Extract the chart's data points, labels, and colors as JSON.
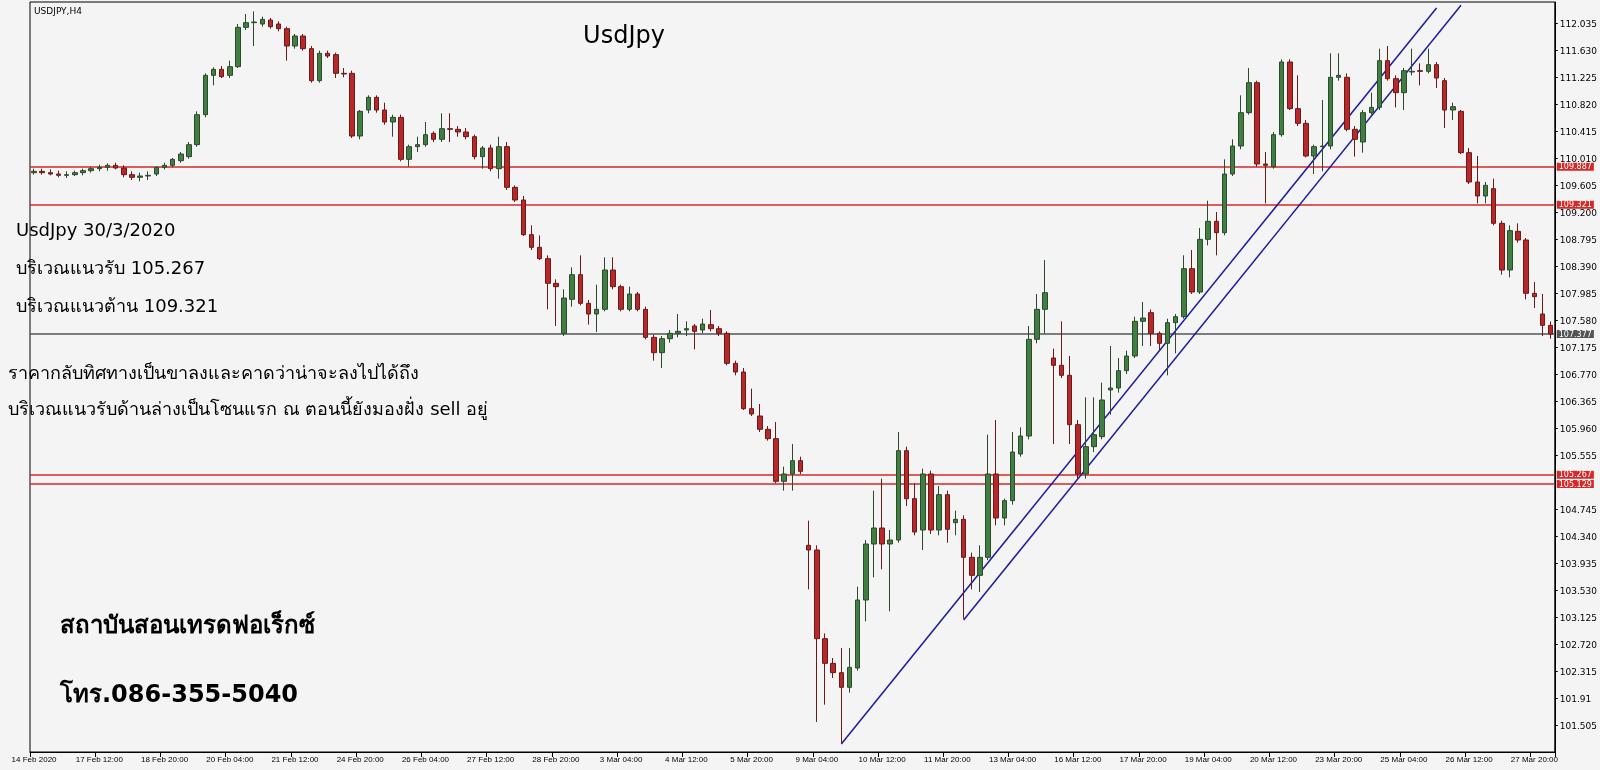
{
  "chart_data": {
    "type": "candlestick",
    "title": "UsdJpy",
    "subtitle": "USDJPY,H4",
    "categories": [
      "14 Feb 2020",
      null,
      null,
      null,
      null,
      null,
      null,
      null,
      "17 Feb 12:00",
      null,
      null,
      null,
      null,
      null,
      null,
      null,
      "18 Feb 20:00",
      null,
      null,
      null,
      null,
      null,
      null,
      null,
      "20 Feb 04:00",
      null,
      null,
      null,
      null,
      null,
      null,
      null,
      "21 Feb 12:00",
      null,
      null,
      null,
      null,
      null,
      null,
      null,
      "24 Feb 20:00",
      null,
      null,
      null,
      null,
      null,
      null,
      null,
      "26 Feb 04:00",
      null,
      null,
      null,
      null,
      null,
      null,
      null,
      "27 Feb 12:00",
      null,
      null,
      null,
      null,
      null,
      null,
      null,
      "28 Feb 20:00",
      null,
      null,
      null,
      null,
      null,
      null,
      null,
      "3 Mar 04:00",
      null,
      null,
      null,
      null,
      null,
      null,
      null,
      "4 Mar 12:00",
      null,
      null,
      null,
      null,
      null,
      null,
      null,
      "5 Mar 20:00",
      null,
      null,
      null,
      null,
      null,
      null,
      null,
      "9 Mar 04:00",
      null,
      null,
      null,
      null,
      null,
      null,
      null,
      "10 Mar 12:00",
      null,
      null,
      null,
      null,
      null,
      null,
      null,
      "11 Mar 20:00",
      null,
      null,
      null,
      null,
      null,
      null,
      null,
      "13 Mar 04:00",
      null,
      null,
      null,
      null,
      null,
      null,
      null,
      "16 Mar 12:00",
      null,
      null,
      null,
      null,
      null,
      null,
      null,
      "17 Mar 20:00",
      null,
      null,
      null,
      null,
      null,
      null,
      null,
      "19 Mar 04:00",
      null,
      null,
      null,
      null,
      null,
      null,
      null,
      "20 Mar 12:00",
      null,
      null,
      null,
      null,
      null,
      null,
      null,
      "23 Mar 20:00",
      null,
      null,
      null,
      null,
      null,
      null,
      null,
      "25 Mar 04:00",
      null,
      null,
      null,
      null,
      null,
      null,
      null,
      "26 Mar 12:00",
      null,
      null,
      null,
      null,
      null,
      null,
      null,
      "27 Mar 20:00",
      null,
      null
    ],
    "series": [
      {
        "type": "candlestick",
        "ohlc": [
          [
            109.8,
            109.86,
            109.77,
            109.82
          ],
          [
            109.82,
            109.86,
            109.77,
            109.8
          ],
          [
            109.8,
            109.85,
            109.76,
            109.78
          ],
          [
            109.78,
            109.83,
            109.73,
            109.76
          ],
          [
            109.76,
            109.82,
            109.72,
            109.77
          ],
          [
            109.77,
            109.83,
            109.75,
            109.8
          ],
          [
            109.8,
            109.86,
            109.76,
            109.83
          ],
          [
            109.83,
            109.89,
            109.8,
            109.86
          ],
          [
            109.86,
            109.92,
            109.82,
            109.88
          ],
          [
            109.88,
            109.94,
            109.83,
            109.91
          ],
          [
            109.91,
            109.95,
            109.85,
            109.87
          ],
          [
            109.87,
            109.91,
            109.73,
            109.77
          ],
          [
            109.77,
            109.82,
            109.69,
            109.73
          ],
          [
            109.73,
            109.8,
            109.67,
            109.75
          ],
          [
            109.75,
            109.82,
            109.69,
            109.76
          ],
          [
            109.78,
            109.89,
            109.75,
            109.88
          ],
          [
            109.88,
            109.95,
            109.85,
            109.91
          ],
          [
            109.91,
            110.02,
            109.88,
            110.0
          ],
          [
            109.98,
            110.11,
            109.95,
            110.08
          ],
          [
            110.04,
            110.26,
            110.01,
            110.22
          ],
          [
            110.22,
            110.72,
            110.19,
            110.67
          ],
          [
            110.67,
            111.29,
            110.63,
            111.26
          ],
          [
            111.26,
            111.38,
            111.11,
            111.35
          ],
          [
            111.35,
            111.4,
            111.22,
            111.24
          ],
          [
            111.26,
            111.48,
            111.22,
            111.39
          ],
          [
            111.39,
            112.03,
            111.37,
            111.98
          ],
          [
            111.98,
            112.18,
            111.94,
            112.05
          ],
          [
            112.05,
            112.22,
            111.7,
            112.06
          ],
          [
            112.03,
            112.14,
            111.99,
            112.1
          ],
          [
            112.09,
            112.12,
            111.96,
            111.99
          ],
          [
            112.03,
            112.07,
            111.92,
            111.96
          ],
          [
            111.96,
            111.99,
            111.48,
            111.7
          ],
          [
            111.7,
            111.88,
            111.66,
            111.85
          ],
          [
            111.85,
            111.88,
            111.63,
            111.66
          ],
          [
            111.66,
            111.7,
            111.15,
            111.18
          ],
          [
            111.18,
            111.63,
            111.15,
            111.59
          ],
          [
            111.59,
            111.63,
            111.52,
            111.55
          ],
          [
            111.57,
            111.6,
            111.22,
            111.29
          ],
          [
            111.29,
            111.37,
            111.23,
            111.28
          ],
          [
            111.29,
            111.33,
            110.32,
            110.35
          ],
          [
            110.35,
            110.74,
            110.3,
            110.72
          ],
          [
            110.74,
            110.96,
            110.69,
            110.93
          ],
          [
            110.93,
            110.96,
            110.7,
            110.74
          ],
          [
            110.74,
            110.85,
            110.52,
            110.56
          ],
          [
            110.56,
            110.67,
            110.34,
            110.63
          ],
          [
            110.63,
            110.67,
            109.97,
            110.0
          ],
          [
            110.0,
            110.22,
            109.89,
            110.19
          ],
          [
            110.19,
            110.34,
            110.11,
            110.22
          ],
          [
            110.22,
            110.56,
            110.19,
            110.37
          ],
          [
            110.39,
            110.42,
            110.26,
            110.3
          ],
          [
            110.3,
            110.69,
            110.26,
            110.46
          ],
          [
            110.46,
            110.69,
            110.26,
            110.45
          ],
          [
            110.45,
            110.5,
            110.34,
            110.41
          ],
          [
            110.41,
            110.47,
            110.3,
            110.34
          ],
          [
            110.34,
            110.37,
            110.0,
            110.04
          ],
          [
            110.04,
            110.2,
            109.86,
            110.17
          ],
          [
            110.17,
            110.22,
            109.82,
            109.86
          ],
          [
            109.86,
            110.34,
            109.71,
            110.19
          ],
          [
            110.19,
            110.26,
            109.54,
            109.58
          ],
          [
            109.58,
            109.61,
            109.36,
            109.39
          ],
          [
            109.39,
            109.45,
            108.85,
            108.87
          ],
          [
            108.87,
            109.01,
            108.64,
            108.68
          ],
          [
            108.68,
            108.86,
            108.49,
            108.51
          ],
          [
            108.51,
            108.56,
            107.75,
            108.14
          ],
          [
            108.14,
            108.2,
            107.5,
            108.09
          ],
          [
            107.39,
            108.05,
            107.35,
            107.92
          ],
          [
            107.9,
            108.38,
            107.79,
            108.27
          ],
          [
            108.27,
            108.56,
            107.81,
            107.84
          ],
          [
            107.84,
            107.89,
            107.52,
            107.68
          ],
          [
            107.68,
            108.12,
            107.41,
            107.75
          ],
          [
            107.75,
            108.53,
            107.72,
            108.34
          ],
          [
            108.34,
            108.53,
            108.05,
            108.09
          ],
          [
            108.09,
            108.12,
            107.72,
            107.75
          ],
          [
            107.75,
            108.09,
            107.72,
            107.98
          ],
          [
            107.98,
            108.01,
            107.72,
            107.75
          ],
          [
            107.75,
            107.79,
            107.3,
            107.33
          ],
          [
            107.33,
            107.37,
            106.98,
            107.1
          ],
          [
            107.1,
            107.35,
            106.87,
            107.31
          ],
          [
            107.31,
            107.44,
            107.25,
            107.39
          ],
          [
            107.39,
            107.68,
            107.33,
            107.42
          ],
          [
            107.44,
            107.57,
            107.35,
            107.46
          ],
          [
            107.5,
            107.53,
            107.15,
            107.42
          ],
          [
            107.44,
            107.61,
            107.39,
            107.53
          ],
          [
            107.52,
            107.74,
            107.42,
            107.46
          ],
          [
            107.46,
            107.5,
            107.35,
            107.39
          ],
          [
            107.39,
            107.42,
            106.91,
            106.94
          ],
          [
            106.94,
            106.98,
            106.76,
            106.81
          ],
          [
            106.81,
            106.87,
            106.24,
            106.26
          ],
          [
            106.26,
            106.56,
            106.15,
            106.18
          ],
          [
            106.15,
            106.33,
            105.91,
            105.95
          ],
          [
            105.95,
            106.0,
            105.78,
            105.81
          ],
          [
            105.81,
            106.06,
            105.14,
            105.17
          ],
          [
            105.17,
            105.39,
            105.03,
            105.28
          ],
          [
            105.28,
            105.73,
            105.03,
            105.48
          ],
          [
            105.48,
            105.54,
            105.28,
            105.32
          ],
          [
            104.21,
            104.58,
            103.55,
            104.14
          ],
          [
            104.14,
            104.21,
            101.56,
            102.81
          ],
          [
            102.81,
            102.89,
            101.82,
            102.44
          ],
          [
            102.44,
            102.52,
            102.22,
            102.3
          ],
          [
            102.3,
            102.67,
            101.23,
            102.08
          ],
          [
            102.08,
            102.67,
            102.0,
            102.38
          ],
          [
            102.37,
            103.59,
            102.33,
            103.39
          ],
          [
            103.39,
            104.29,
            103.07,
            104.23
          ],
          [
            104.23,
            105.03,
            103.73,
            104.47
          ],
          [
            104.47,
            105.21,
            103.85,
            104.23
          ],
          [
            104.23,
            104.44,
            103.22,
            104.29
          ],
          [
            104.29,
            105.91,
            104.25,
            105.63
          ],
          [
            105.63,
            105.69,
            104.8,
            104.91
          ],
          [
            104.91,
            105.14,
            104.36,
            104.41
          ],
          [
            104.44,
            105.36,
            104.14,
            105.28
          ],
          [
            105.28,
            105.33,
            104.38,
            104.44
          ],
          [
            104.44,
            105.1,
            104.36,
            104.97
          ],
          [
            104.97,
            105.03,
            104.25,
            104.45
          ],
          [
            104.55,
            104.73,
            104.36,
            104.6
          ],
          [
            104.6,
            104.66,
            103.11,
            104.03
          ],
          [
            104.03,
            104.1,
            103.55,
            103.76
          ],
          [
            103.76,
            104.21,
            103.51,
            104.03
          ],
          [
            104.03,
            105.87,
            103.99,
            105.28
          ],
          [
            105.28,
            106.09,
            104.51,
            104.62
          ],
          [
            104.62,
            104.91,
            104.51,
            104.88
          ],
          [
            104.88,
            105.91,
            104.82,
            105.61
          ],
          [
            105.58,
            105.98,
            105.54,
            105.85
          ],
          [
            105.85,
            107.5,
            105.8,
            107.3
          ],
          [
            107.3,
            107.98,
            107.24,
            107.75
          ],
          [
            107.75,
            108.49,
            107.39,
            108.0
          ],
          [
            107.02,
            107.16,
            105.73,
            106.91
          ],
          [
            106.91,
            107.57,
            106.72,
            106.76
          ],
          [
            106.76,
            107.05,
            105.73,
            106.02
          ],
          [
            106.02,
            106.09,
            105.21,
            105.28
          ],
          [
            105.28,
            106.43,
            105.21,
            105.69
          ],
          [
            105.69,
            106.43,
            105.61,
            105.87
          ],
          [
            105.84,
            106.65,
            105.8,
            106.39
          ],
          [
            106.54,
            107.2,
            106.17,
            106.57
          ],
          [
            106.57,
            107.02,
            106.5,
            106.83
          ],
          [
            106.83,
            107.13,
            106.78,
            107.05
          ],
          [
            107.05,
            107.64,
            107.02,
            107.57
          ],
          [
            107.57,
            107.86,
            107.2,
            107.62
          ],
          [
            107.7,
            107.75,
            107.2,
            107.39
          ],
          [
            107.39,
            107.42,
            107.13,
            107.24
          ],
          [
            107.24,
            107.61,
            106.76,
            107.55
          ],
          [
            107.55,
            107.68,
            107.09,
            107.64
          ],
          [
            107.64,
            108.56,
            107.61,
            108.36
          ],
          [
            108.36,
            108.64,
            107.98,
            108.01
          ],
          [
            108.01,
            108.97,
            107.98,
            108.8
          ],
          [
            108.8,
            109.38,
            108.71,
            109.07
          ],
          [
            109.07,
            109.21,
            108.56,
            108.9
          ],
          [
            108.9,
            110.0,
            108.86,
            109.78
          ],
          [
            109.78,
            110.3,
            109.75,
            110.2
          ],
          [
            110.2,
            110.96,
            110.15,
            110.7
          ],
          [
            110.7,
            111.37,
            110.67,
            111.15
          ],
          [
            111.15,
            111.18,
            109.89,
            109.93
          ],
          [
            109.93,
            110.11,
            109.34,
            109.91
          ],
          [
            109.89,
            110.41,
            109.86,
            110.37
          ],
          [
            110.37,
            111.5,
            110.34,
            111.46
          ],
          [
            111.46,
            111.5,
            110.74,
            110.76
          ],
          [
            110.76,
            111.26,
            110.5,
            110.54
          ],
          [
            110.54,
            110.59,
            110.03,
            110.05
          ],
          [
            110.05,
            110.22,
            109.78,
            110.19
          ],
          [
            110.19,
            110.89,
            109.82,
            110.2
          ],
          [
            110.2,
            111.59,
            110.15,
            111.23
          ],
          [
            111.23,
            111.59,
            111.18,
            111.26
          ],
          [
            111.23,
            111.29,
            110.42,
            110.45
          ],
          [
            110.45,
            110.5,
            110.04,
            110.3
          ],
          [
            110.26,
            110.74,
            110.1,
            110.7
          ],
          [
            110.7,
            111.0,
            110.67,
            110.78
          ],
          [
            110.78,
            111.66,
            110.74,
            111.48
          ],
          [
            111.48,
            111.7,
            111.18,
            111.21
          ],
          [
            111.21,
            111.26,
            110.78,
            111.0
          ],
          [
            111.0,
            111.37,
            110.74,
            111.33
          ],
          [
            111.31,
            111.66,
            111.26,
            111.32
          ],
          [
            111.33,
            111.44,
            111.11,
            111.32
          ],
          [
            111.32,
            111.66,
            111.29,
            111.42
          ],
          [
            111.42,
            111.46,
            111.07,
            111.22
          ],
          [
            111.18,
            111.22,
            110.47,
            110.74
          ],
          [
            110.74,
            110.85,
            110.59,
            110.79
          ],
          [
            110.72,
            110.74,
            110.08,
            110.1
          ],
          [
            110.1,
            110.17,
            109.63,
            109.66
          ],
          [
            109.66,
            110.05,
            109.34,
            109.45
          ],
          [
            109.45,
            109.66,
            109.34,
            109.61
          ],
          [
            109.56,
            109.71,
            109.01,
            109.04
          ],
          [
            109.04,
            109.08,
            108.27,
            108.34
          ],
          [
            108.34,
            109.01,
            108.23,
            108.93
          ],
          [
            108.92,
            109.04,
            108.75,
            108.79
          ],
          [
            108.79,
            108.82,
            107.9,
            107.99
          ],
          [
            107.99,
            108.16,
            107.77,
            107.94
          ],
          [
            107.68,
            107.98,
            107.35,
            107.51
          ],
          [
            107.51,
            107.57,
            107.31,
            107.38
          ]
        ]
      },
      {
        "type": "line",
        "color": "#1c1ca0",
        "values": [
          null,
          null,
          null,
          null,
          null,
          null,
          null,
          null,
          null,
          null,
          null,
          null,
          null,
          null,
          null,
          null,
          null,
          null,
          null,
          null,
          null,
          null,
          null,
          null,
          null,
          null,
          null,
          null,
          null,
          null,
          null,
          null,
          null,
          null,
          null,
          null,
          null,
          null,
          null,
          null,
          null,
          null,
          null,
          null,
          null,
          null,
          null,
          null,
          null,
          null,
          null,
          null,
          null,
          null,
          null,
          null,
          null,
          null,
          null,
          null,
          null,
          null,
          null,
          null,
          null,
          null,
          null,
          null,
          null,
          null,
          null,
          null,
          null,
          null,
          null,
          null,
          null,
          null,
          null,
          null,
          null,
          null,
          null,
          null,
          null,
          null,
          null,
          null,
          null,
          null,
          null,
          null,
          null,
          null,
          null,
          null,
          null,
          null,
          null,
          101.23,
          null,
          null,
          null,
          null,
          null,
          null,
          null,
          null,
          null,
          null,
          null,
          null,
          null,
          null,
          null,
          null,
          null,
          null,
          null,
          null,
          null,
          null,
          null,
          null,
          null,
          null,
          null,
          null,
          null,
          null,
          null,
          null,
          null,
          null,
          null,
          null,
          null,
          null,
          null,
          null,
          null,
          null,
          null,
          null,
          null,
          null,
          null,
          null,
          null,
          null,
          null,
          null,
          null,
          null,
          null,
          null,
          null,
          null,
          null,
          null,
          null,
          null,
          null,
          null,
          null,
          null,
          null,
          null,
          null,
          null,
          null,
          null,
          112.27,
          null,
          null,
          null,
          null,
          null,
          null,
          null,
          null,
          null,
          null,
          null,
          null,
          null,
          null
        ]
      },
      {
        "type": "line",
        "color": "#1c1ca0",
        "values": [
          null,
          null,
          null,
          null,
          null,
          null,
          null,
          null,
          null,
          null,
          null,
          null,
          null,
          null,
          null,
          null,
          null,
          null,
          null,
          null,
          null,
          null,
          null,
          null,
          null,
          null,
          null,
          null,
          null,
          null,
          null,
          null,
          null,
          null,
          null,
          null,
          null,
          null,
          null,
          null,
          null,
          null,
          null,
          null,
          null,
          null,
          null,
          null,
          null,
          null,
          null,
          null,
          null,
          null,
          null,
          null,
          null,
          null,
          null,
          null,
          null,
          null,
          null,
          null,
          null,
          null,
          null,
          null,
          null,
          null,
          null,
          null,
          null,
          null,
          null,
          null,
          null,
          null,
          null,
          null,
          null,
          null,
          null,
          null,
          null,
          null,
          null,
          null,
          null,
          null,
          null,
          null,
          null,
          null,
          null,
          null,
          null,
          null,
          null,
          null,
          null,
          null,
          null,
          null,
          null,
          null,
          null,
          null,
          null,
          null,
          null,
          null,
          null,
          null,
          103.09,
          null,
          null,
          null,
          null,
          null,
          null,
          null,
          null,
          null,
          null,
          null,
          null,
          null,
          null,
          null,
          null,
          null,
          null,
          null,
          null,
          null,
          null,
          null,
          null,
          null,
          null,
          null,
          null,
          null,
          null,
          null,
          null,
          null,
          null,
          null,
          null,
          null,
          null,
          null,
          null,
          null,
          null,
          null,
          null,
          null,
          null,
          null,
          null,
          null,
          null,
          null,
          null,
          null,
          null,
          null,
          null,
          null,
          null,
          null,
          null,
          112.31,
          null,
          null,
          null,
          null,
          null,
          null,
          null,
          null,
          null,
          null,
          null
        ]
      }
    ],
    "ylim": [
      101.11,
      112.36
    ],
    "yticks": [
      101.505,
      101.91,
      102.315,
      {
        "value": 102.72,
        "label": "102.720"
      },
      103.125,
      {
        "value": 103.53,
        "label": "103.530"
      },
      103.935,
      {
        "value": 104.34,
        "label": "104.340"
      },
      104.745,
      105.555,
      {
        "value": 105.96,
        "label": "105.960"
      },
      106.365,
      {
        "value": 106.77,
        "label": "106.770"
      },
      107.175,
      {
        "value": 107.58,
        "label": "107.580"
      },
      107.985,
      {
        "value": 108.39,
        "label": "108.390"
      },
      108.795,
      {
        "value": 109.2,
        "label": "109.200"
      },
      109.605,
      {
        "value": 110.01,
        "label": "110.010"
      },
      110.415,
      {
        "value": 110.82,
        "label": "110.820"
      },
      111.225,
      {
        "value": 111.63,
        "label": "111.630"
      },
      112.035
    ],
    "ref_lines": [
      {
        "axis": "y",
        "value": 109.887,
        "label": "109.887",
        "color": "#d42a2a"
      },
      {
        "axis": "y",
        "value": 109.321,
        "label": "109.321",
        "color": "#d42a2a"
      },
      {
        "axis": "y",
        "value": 107.377,
        "label": "107.377",
        "color": "#555555"
      },
      {
        "axis": "y",
        "value": 105.267,
        "label": "105.267",
        "color": "#d42a2a"
      },
      {
        "axis": "y",
        "value": 105.129,
        "label": "105.129",
        "color": "#d42a2a"
      }
    ],
    "annotations": [
      "UsdJpy 30/3/2020",
      "บริเวณแนวรับ 105.267",
      "บริเวณแนวต้าน 109.321",
      "ราคากลับทิศทางเป็นขาลงและคาดว่าน่าจะลงไปได้ถึง",
      "บริเวณแนวรับด้านล่างเป็นโซนแรก ณ ตอนนี้ยังมองฝั่ง sell อยู่",
      "สถาบันสอนเทรดฟอเร็กซ์",
      "โทร.086-355-5040"
    ]
  }
}
